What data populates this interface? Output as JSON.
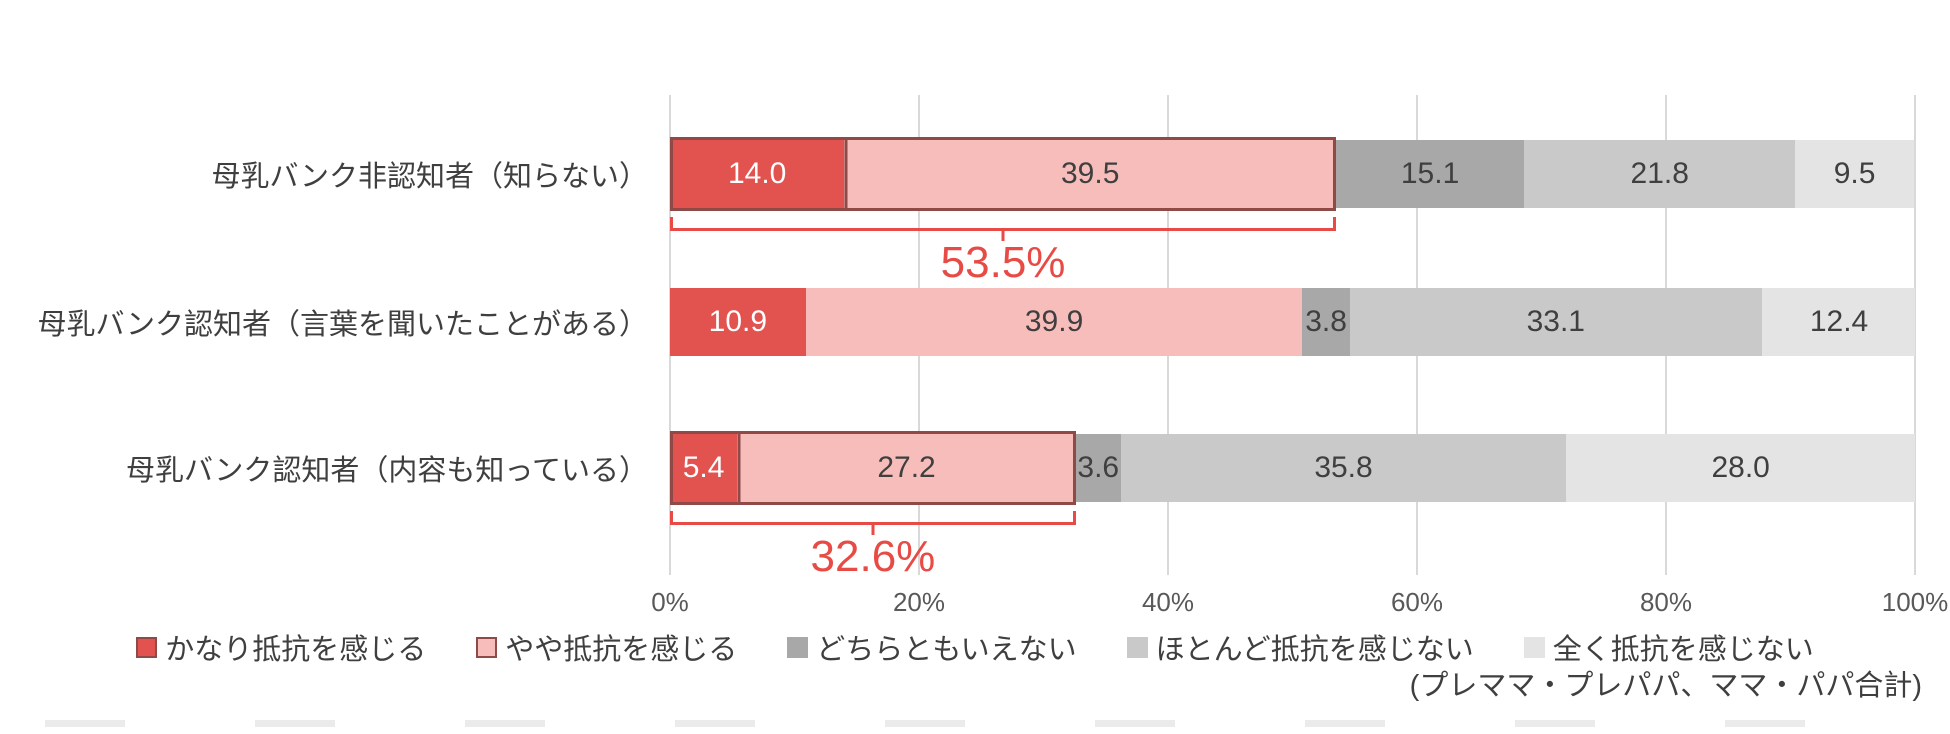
{
  "chart_data": {
    "type": "bar",
    "variant": "horizontal-stacked",
    "categories": [
      "母乳バンク非認知者（知らない）",
      "母乳バンク認知者（言葉を聞いたことがある）",
      "母乳バンク認知者（内容も知っている）"
    ],
    "series": [
      {
        "name": "かなり抵抗を感じる",
        "color": "#e25350",
        "text_color": "#ffffff",
        "outlined_marker": true,
        "values": [
          14.0,
          10.9,
          5.4
        ]
      },
      {
        "name": "やや抵抗を感じる",
        "color": "#f6bdbb",
        "text_color": "#3f3f3f",
        "outlined_marker": true,
        "values": [
          39.5,
          39.9,
          27.2
        ]
      },
      {
        "name": "どちらともいえない",
        "color": "#a8a8a8",
        "text_color": "#3f3f3f",
        "outlined_marker": false,
        "values": [
          15.1,
          3.8,
          3.6
        ]
      },
      {
        "name": "ほとんど抵抗を感じない",
        "color": "#c9c9c9",
        "text_color": "#3f3f3f",
        "outlined_marker": false,
        "values": [
          21.8,
          33.1,
          35.8
        ]
      },
      {
        "name": "全く抵抗を感じない",
        "color": "#e4e4e4",
        "text_color": "#3f3f3f",
        "outlined_marker": false,
        "values": [
          9.5,
          12.4,
          28.0
        ]
      }
    ],
    "xlim": [
      0,
      100
    ],
    "x_ticks": [
      0,
      20,
      40,
      60,
      80,
      100
    ],
    "x_tick_labels": [
      "0%",
      "20%",
      "40%",
      "60%",
      "80%",
      "100%"
    ],
    "annotations": [
      {
        "row": 0,
        "span": [
          0,
          53.5
        ],
        "label": "53.5%"
      },
      {
        "row": 2,
        "span": [
          0,
          32.6
        ],
        "label": "32.6%"
      }
    ],
    "highlight": {
      "rows": [
        0,
        2
      ],
      "series_count": 2,
      "outline_color": "#8f4a48"
    },
    "annotation_color": "#e84b45",
    "gridline_color": "#d9d9d9",
    "legend_position": "bottom",
    "footnote": "(プレママ・プレパパ、ママ・パパ合計)"
  }
}
